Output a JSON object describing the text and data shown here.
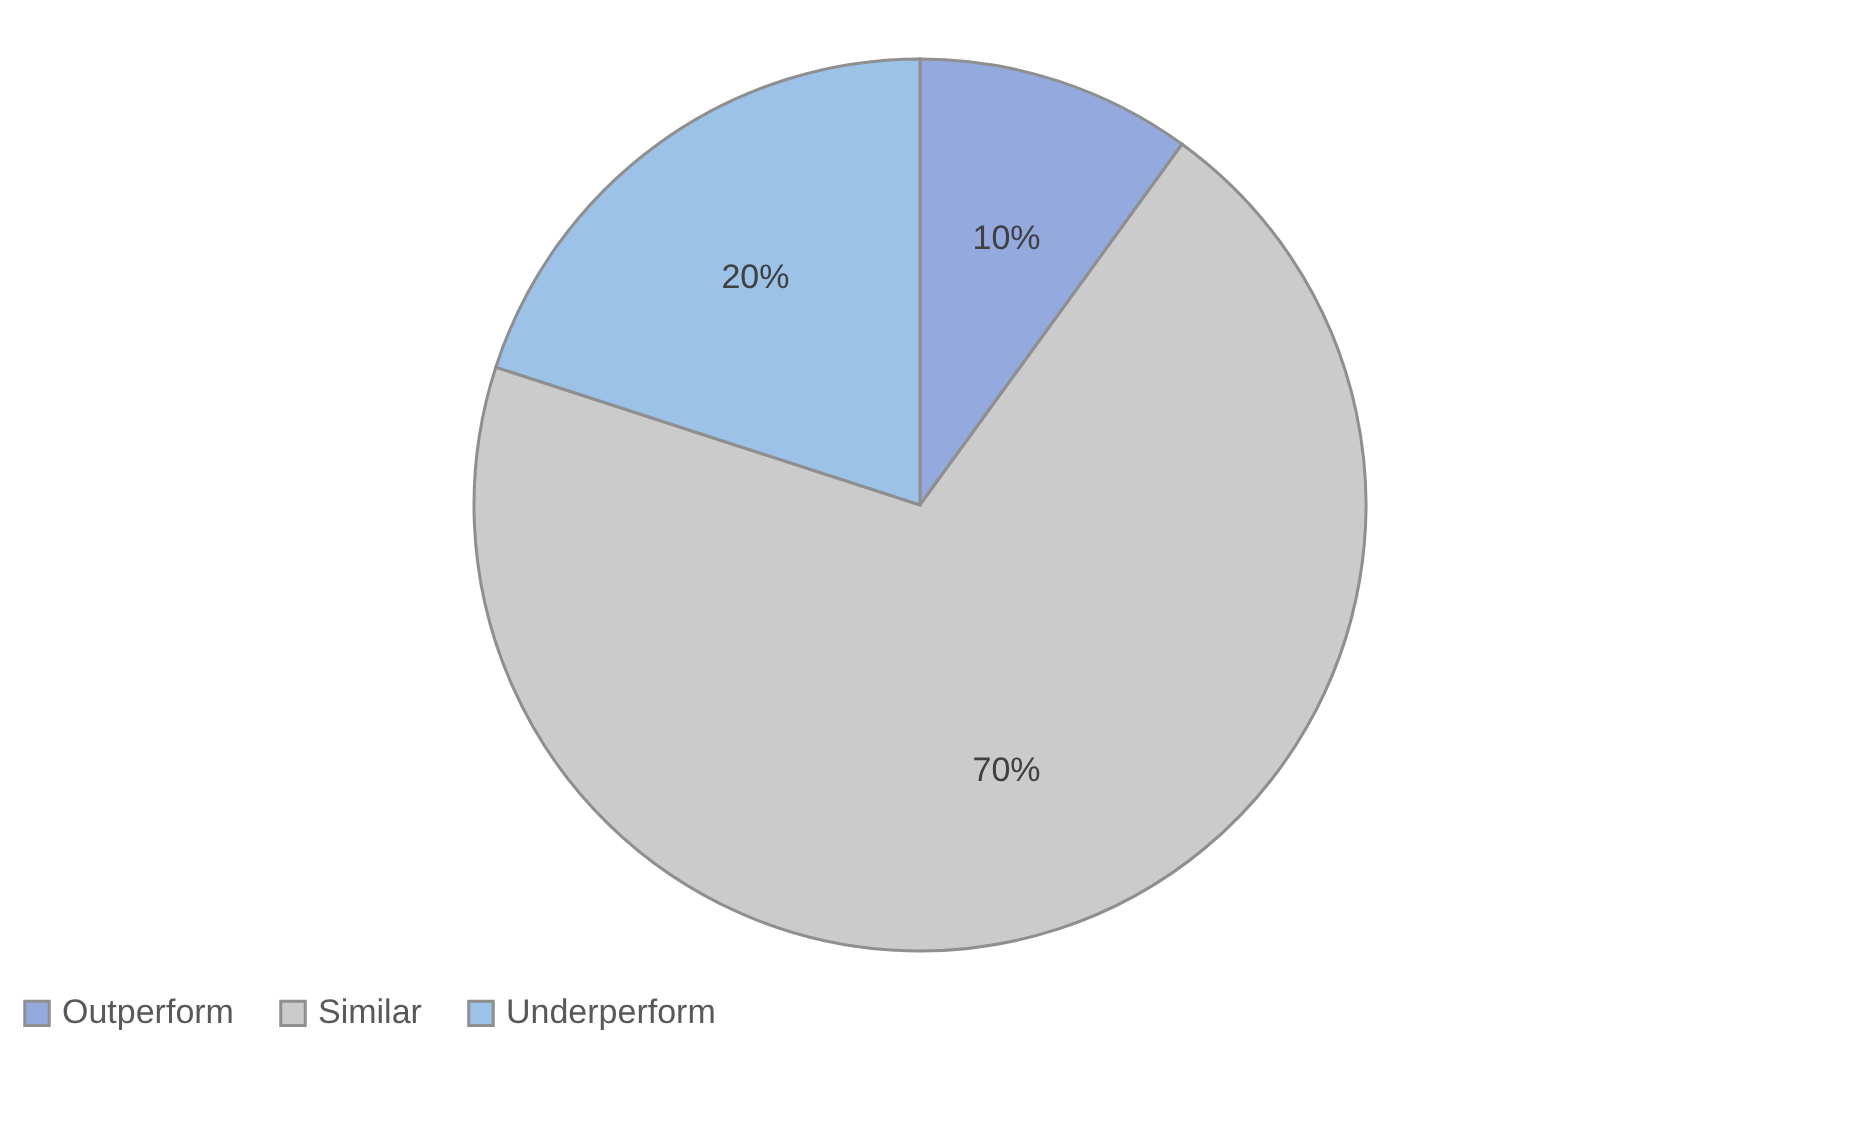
{
  "chart_data": {
    "type": "pie",
    "categories": [
      "Outperform",
      "Similar",
      "Underperform"
    ],
    "values": [
      10,
      70,
      20
    ],
    "colors": [
      "#94a9dd",
      "#cbcbcb",
      "#9cc2e8"
    ],
    "value_labels": [
      "10%",
      "70%",
      "20%"
    ],
    "legend": "bottom"
  }
}
